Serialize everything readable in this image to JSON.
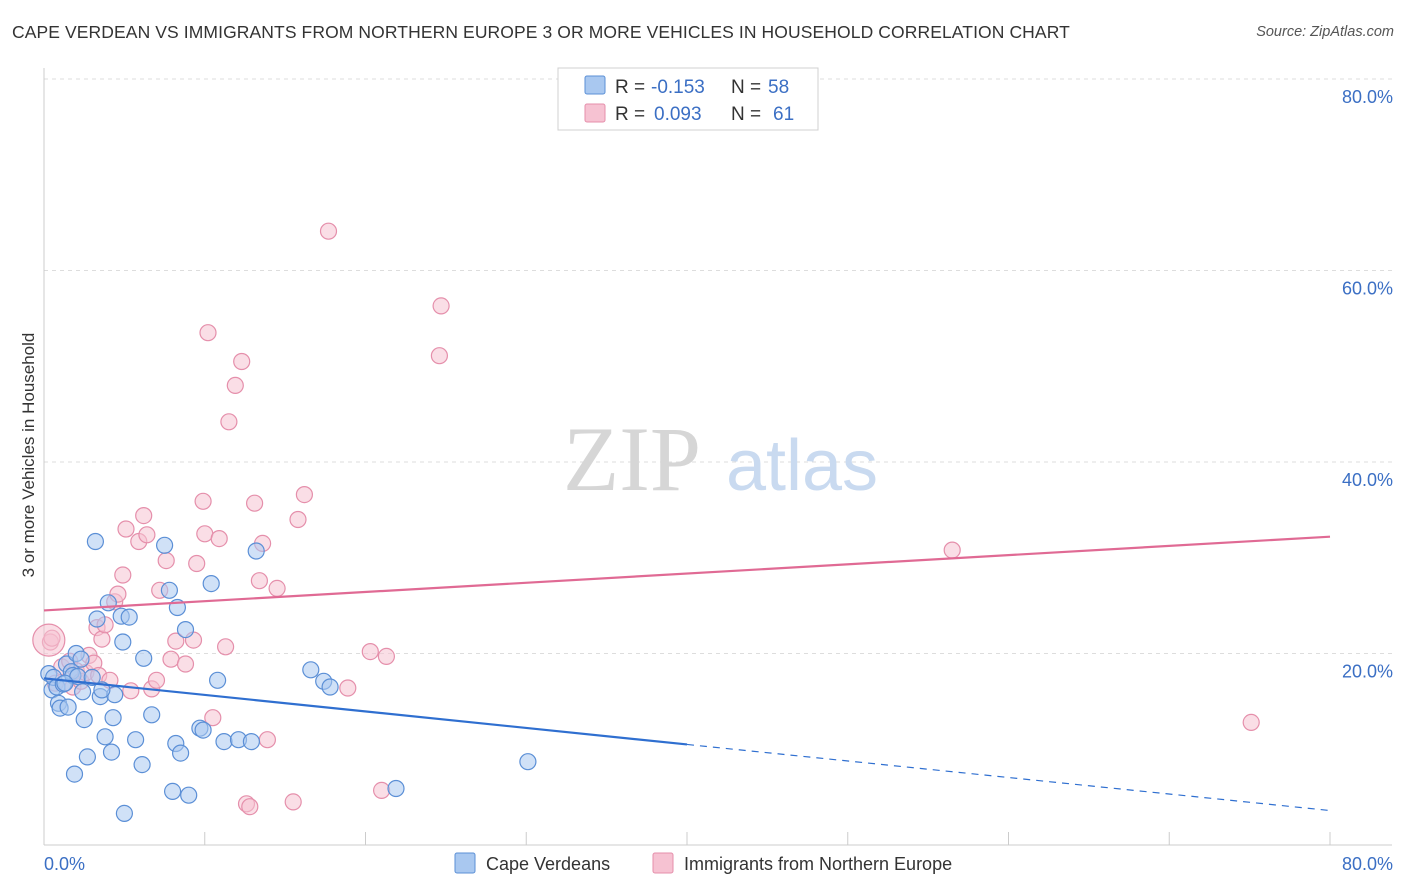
{
  "header": {
    "title": "CAPE VERDEAN VS IMMIGRANTS FROM NORTHERN EUROPE 3 OR MORE VEHICLES IN HOUSEHOLD CORRELATION CHART",
    "source": "Source: ZipAtlas.com"
  },
  "watermark": {
    "zip": "ZIP",
    "atlas": "atlas"
  },
  "stats_legend": {
    "rows": [
      {
        "r_label": "R =",
        "r_value": "-0.153",
        "n_label": "N =",
        "n_value": "58"
      },
      {
        "r_label": "R =",
        "r_value": "0.093",
        "n_label": "N =",
        "n_value": "61"
      }
    ]
  },
  "colors": {
    "blue_fill": "#a9c8f0",
    "blue_stroke": "#5b8fd6",
    "blue_line": "#2f6fd0",
    "pink_fill": "#f6c2d2",
    "pink_stroke": "#e58fab",
    "pink_line": "#e06a94",
    "value_text": "#3b6fc4",
    "grid": "#dddddd"
  },
  "chart_data": {
    "type": "scatter",
    "title": "CAPE VERDEAN VS IMMIGRANTS FROM NORTHERN EUROPE 3 OR MORE VEHICLES IN HOUSEHOLD CORRELATION CHART",
    "xlabel": "",
    "ylabel": "3 or more Vehicles in Household",
    "xlim": [
      0,
      80
    ],
    "ylim": [
      0,
      80
    ],
    "x_ticks": [
      "0.0%",
      "80.0%"
    ],
    "y_ticks": [
      {
        "value": 20,
        "label": "20.0%"
      },
      {
        "value": 40,
        "label": "40.0%"
      },
      {
        "value": 60,
        "label": "60.0%"
      },
      {
        "value": 80,
        "label": "80.0%"
      }
    ],
    "grid": true,
    "legend_position": "bottom-center",
    "series": [
      {
        "name": "Cape Verdeans",
        "color_key": "blue",
        "points": [
          [
            0.3,
            17.9
          ],
          [
            0.5,
            16.2
          ],
          [
            0.6,
            17.5
          ],
          [
            0.8,
            16.5
          ],
          [
            0.9,
            14.8
          ],
          [
            1.0,
            14.3
          ],
          [
            1.2,
            16.8
          ],
          [
            1.4,
            18.9
          ],
          [
            1.5,
            14.4
          ],
          [
            1.7,
            18.1
          ],
          [
            1.8,
            17.7
          ],
          [
            1.9,
            7.4
          ],
          [
            2.0,
            20.0
          ],
          [
            2.1,
            17.6
          ],
          [
            2.3,
            19.4
          ],
          [
            2.4,
            16.0
          ],
          [
            2.5,
            13.1
          ],
          [
            2.7,
            9.2
          ],
          [
            3.0,
            17.5
          ],
          [
            3.2,
            31.7
          ],
          [
            3.3,
            23.6
          ],
          [
            3.5,
            15.5
          ],
          [
            3.8,
            11.3
          ],
          [
            4.0,
            25.3
          ],
          [
            4.2,
            9.7
          ],
          [
            4.3,
            13.3
          ],
          [
            4.4,
            15.7
          ],
          [
            4.8,
            23.9
          ],
          [
            4.9,
            21.2
          ],
          [
            5.0,
            3.3
          ],
          [
            5.3,
            23.8
          ],
          [
            5.7,
            11.0
          ],
          [
            6.1,
            8.4
          ],
          [
            6.2,
            19.5
          ],
          [
            6.7,
            13.6
          ],
          [
            7.5,
            31.3
          ],
          [
            7.8,
            26.6
          ],
          [
            8.0,
            5.6
          ],
          [
            8.2,
            10.6
          ],
          [
            8.3,
            24.8
          ],
          [
            8.5,
            9.6
          ],
          [
            8.8,
            22.5
          ],
          [
            9.0,
            5.2
          ],
          [
            9.7,
            12.2
          ],
          [
            9.9,
            12.0
          ],
          [
            10.4,
            27.3
          ],
          [
            10.8,
            17.2
          ],
          [
            11.2,
            10.8
          ],
          [
            12.1,
            11.0
          ],
          [
            12.9,
            10.8
          ],
          [
            13.2,
            30.7
          ],
          [
            16.6,
            18.3
          ],
          [
            17.4,
            17.1
          ],
          [
            17.8,
            16.5
          ],
          [
            21.9,
            5.9
          ],
          [
            30.1,
            8.7
          ],
          [
            1.3,
            16.9
          ],
          [
            3.6,
            16.2
          ]
        ]
      },
      {
        "name": "Immigrants from Northern Europe",
        "color_key": "pink",
        "points": [
          [
            0.4,
            21.2
          ],
          [
            0.5,
            21.6
          ],
          [
            0.7,
            16.9
          ],
          [
            1.1,
            18.6
          ],
          [
            1.6,
            19.2
          ],
          [
            1.8,
            16.5
          ],
          [
            2.0,
            18.2
          ],
          [
            2.3,
            17.1
          ],
          [
            2.6,
            18.0
          ],
          [
            2.8,
            19.8
          ],
          [
            3.1,
            19.0
          ],
          [
            3.3,
            22.7
          ],
          [
            3.4,
            17.7
          ],
          [
            3.6,
            21.5
          ],
          [
            3.8,
            23.0
          ],
          [
            4.1,
            17.2
          ],
          [
            4.4,
            25.4
          ],
          [
            4.6,
            26.2
          ],
          [
            4.9,
            28.2
          ],
          [
            5.1,
            33.0
          ],
          [
            5.4,
            16.1
          ],
          [
            5.9,
            31.7
          ],
          [
            6.2,
            34.4
          ],
          [
            6.4,
            32.4
          ],
          [
            6.7,
            16.3
          ],
          [
            7.0,
            17.2
          ],
          [
            7.2,
            26.6
          ],
          [
            7.6,
            29.7
          ],
          [
            7.9,
            19.4
          ],
          [
            8.2,
            21.3
          ],
          [
            8.8,
            18.9
          ],
          [
            9.3,
            21.4
          ],
          [
            9.5,
            29.4
          ],
          [
            9.9,
            35.9
          ],
          [
            10.0,
            32.5
          ],
          [
            10.2,
            53.5
          ],
          [
            10.5,
            13.3
          ],
          [
            10.9,
            32.0
          ],
          [
            11.3,
            20.7
          ],
          [
            11.5,
            44.2
          ],
          [
            11.9,
            48.0
          ],
          [
            12.3,
            50.5
          ],
          [
            12.6,
            4.3
          ],
          [
            12.8,
            4.0
          ],
          [
            13.1,
            35.7
          ],
          [
            13.4,
            27.6
          ],
          [
            13.6,
            31.5
          ],
          [
            13.9,
            11.0
          ],
          [
            14.5,
            26.8
          ],
          [
            15.5,
            4.5
          ],
          [
            15.8,
            34.0
          ],
          [
            16.2,
            36.6
          ],
          [
            17.7,
            64.1
          ],
          [
            18.9,
            16.4
          ],
          [
            20.3,
            20.2
          ],
          [
            21.0,
            5.7
          ],
          [
            21.3,
            19.7
          ],
          [
            24.6,
            51.1
          ],
          [
            24.7,
            56.3
          ],
          [
            56.5,
            30.8
          ],
          [
            75.1,
            12.8
          ]
        ]
      }
    ],
    "trend_lines": [
      {
        "series": "Cape Verdeans",
        "x_start": 0,
        "y_start": 17.4,
        "x_solid_end": 40,
        "y_solid_end": 10.5,
        "x_end": 80,
        "y_end": 3.6
      },
      {
        "series": "Immigrants from Northern Europe",
        "x_start": 0,
        "y_start": 24.5,
        "x_end": 80,
        "y_end": 32.2
      }
    ]
  }
}
